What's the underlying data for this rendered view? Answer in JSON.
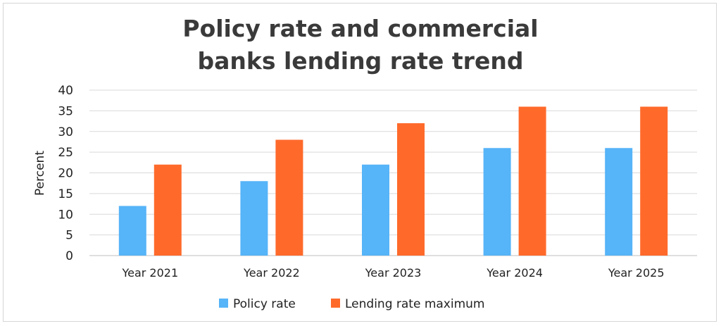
{
  "chart_data": {
    "type": "bar",
    "title_line1": "Policy rate and commercial",
    "title_line2": "banks lending rate trend",
    "xlabel": "",
    "ylabel": "Percent",
    "ylim": [
      0,
      40
    ],
    "yticks": [
      0,
      5,
      10,
      15,
      20,
      25,
      30,
      35,
      40
    ],
    "grid": true,
    "legend_position": "bottom",
    "categories": [
      "Year 2021",
      "Year 2022",
      "Year 2023",
      "Year 2024",
      "Year 2025"
    ],
    "series": [
      {
        "name": "Policy rate",
        "color": "#56B4F8",
        "values": [
          12,
          18,
          22,
          26,
          26
        ]
      },
      {
        "name": "Lending rate maximum",
        "color": "#FF6A2B",
        "values": [
          22,
          28,
          32,
          36,
          36
        ]
      }
    ]
  }
}
